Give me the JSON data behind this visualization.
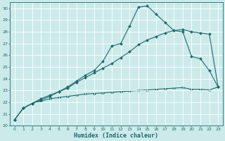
{
  "xlabel": "Humidex (Indice chaleur)",
  "bg_color": "#cceaea",
  "grid_color": "#ffffff",
  "line_color": "#1a6b6b",
  "xlim": [
    -0.5,
    23.5
  ],
  "ylim": [
    20,
    30.5
  ],
  "xticks": [
    0,
    1,
    2,
    3,
    4,
    5,
    6,
    7,
    8,
    9,
    10,
    11,
    12,
    13,
    14,
    15,
    16,
    17,
    18,
    19,
    20,
    21,
    22,
    23
  ],
  "yticks": [
    20,
    21,
    22,
    23,
    24,
    25,
    26,
    27,
    28,
    29,
    30
  ],
  "line1_x": [
    0,
    1,
    2,
    3,
    4,
    5,
    6,
    7,
    8,
    9,
    10,
    11,
    12,
    13,
    14,
    15,
    16,
    17,
    18,
    19,
    20,
    21,
    22,
    23
  ],
  "line1_y": [
    20.5,
    21.5,
    21.9,
    22.3,
    22.6,
    22.9,
    23.3,
    23.8,
    24.3,
    24.7,
    25.5,
    26.8,
    27.0,
    28.5,
    30.1,
    30.2,
    29.5,
    28.8,
    28.1,
    28.0,
    25.9,
    25.7,
    24.7,
    23.3
  ],
  "line2_x": [
    0,
    1,
    2,
    3,
    4,
    5,
    6,
    7,
    8,
    9,
    10,
    11,
    12,
    13,
    14,
    15,
    16,
    17,
    18,
    19,
    20,
    21,
    22,
    23
  ],
  "line2_y": [
    20.5,
    21.5,
    21.9,
    22.2,
    22.5,
    22.9,
    23.2,
    23.7,
    24.1,
    24.5,
    24.9,
    25.3,
    25.8,
    26.3,
    26.9,
    27.3,
    27.6,
    27.9,
    28.1,
    28.2,
    28.0,
    27.9,
    27.8,
    23.3
  ],
  "line3_x": [
    0,
    1,
    2,
    3,
    4,
    5,
    6,
    7,
    8,
    9,
    10,
    11,
    12,
    13,
    14,
    15,
    16,
    17,
    18,
    19,
    20,
    21,
    22,
    23
  ],
  "line3_y": [
    20.5,
    21.5,
    21.9,
    22.1,
    22.3,
    22.4,
    22.5,
    22.6,
    22.7,
    22.75,
    22.8,
    22.85,
    22.9,
    22.95,
    23.0,
    23.05,
    23.1,
    23.15,
    23.2,
    23.25,
    23.1,
    23.1,
    23.05,
    23.3
  ],
  "xlabel_fontsize": 6,
  "tick_fontsize": 4.5,
  "linewidth": 0.8,
  "markersize": 2.0
}
